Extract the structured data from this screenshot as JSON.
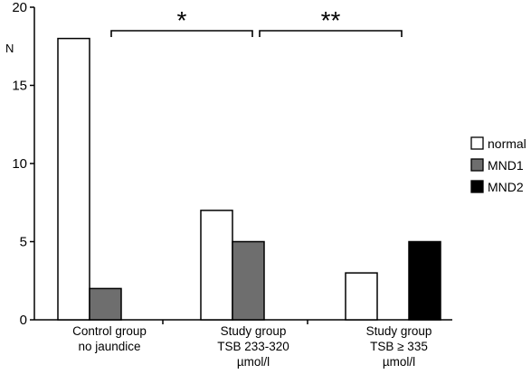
{
  "chart_data": {
    "type": "bar",
    "title": "",
    "xlabel": "",
    "ylabel": "N",
    "ylim": [
      0,
      20
    ],
    "yticks": [
      0,
      5,
      10,
      15,
      20
    ],
    "grid": false,
    "legend_position": "right",
    "categories": [
      [
        "Control group",
        "no jaundice"
      ],
      [
        "Study group",
        "TSB 233-320",
        "µmol/l"
      ],
      [
        "Study group",
        "TSB ≥ 335",
        "µmol/l"
      ]
    ],
    "series": [
      {
        "name": "normal",
        "color": "#ffffff",
        "values": [
          18,
          7,
          3
        ]
      },
      {
        "name": "MND1",
        "color": "#6e6e6e",
        "values": [
          2,
          5,
          0
        ]
      },
      {
        "name": "MND2",
        "color": "#000000",
        "values": [
          0,
          0,
          5
        ]
      }
    ],
    "significance": [
      {
        "label": "*",
        "from_category": 0,
        "to_category": 1
      },
      {
        "label": "**",
        "from_category": 1,
        "to_category": 2
      }
    ]
  }
}
